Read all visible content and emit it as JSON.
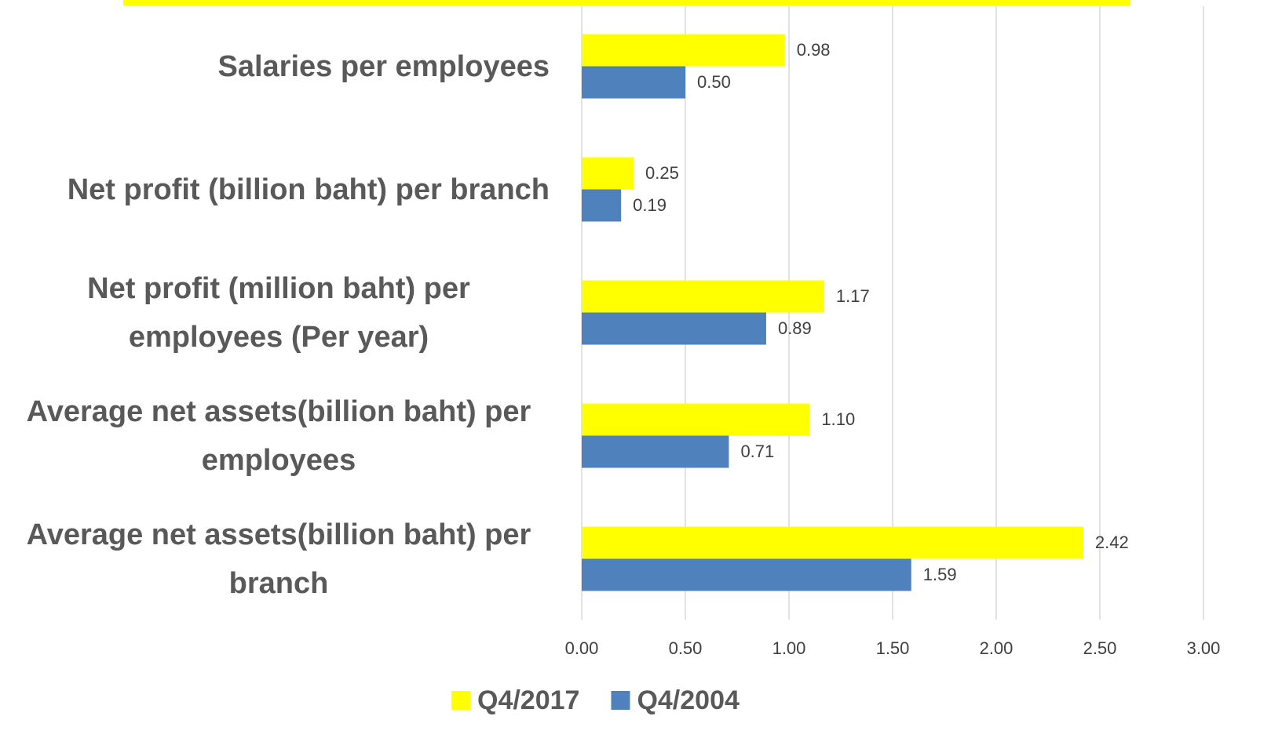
{
  "chart_data": {
    "type": "hbar",
    "categories": [
      "Salaries per employees",
      "Net profit (billion baht) per branch",
      "Net profit (million baht) per employees (Per year)",
      "Average net assets(billion baht) per employees",
      "Average net assets(billion baht) per branch"
    ],
    "series": [
      {
        "name": "Q4/2017",
        "color": "#ffff00",
        "values": [
          0.98,
          0.25,
          1.17,
          1.1,
          2.42
        ],
        "value_labels": [
          "0.98",
          "0.25",
          "1.17",
          "1.10",
          "2.42"
        ]
      },
      {
        "name": "Q4/2004",
        "color": "#4f81bd",
        "values": [
          0.5,
          0.19,
          0.89,
          0.71,
          1.59
        ],
        "value_labels": [
          "0.50",
          "0.19",
          "0.89",
          "0.71",
          "1.59"
        ]
      }
    ],
    "xlim": [
      0,
      3
    ],
    "xticks": [
      {
        "value": 0,
        "label": "0.00"
      },
      {
        "value": 0.5,
        "label": "0.50"
      },
      {
        "value": 1,
        "label": "1.00"
      },
      {
        "value": 1.5,
        "label": "1.50"
      },
      {
        "value": 2,
        "label": "2.00"
      },
      {
        "value": 2.5,
        "label": "2.50"
      },
      {
        "value": 3,
        "label": "3.00"
      }
    ],
    "grid": true
  }
}
